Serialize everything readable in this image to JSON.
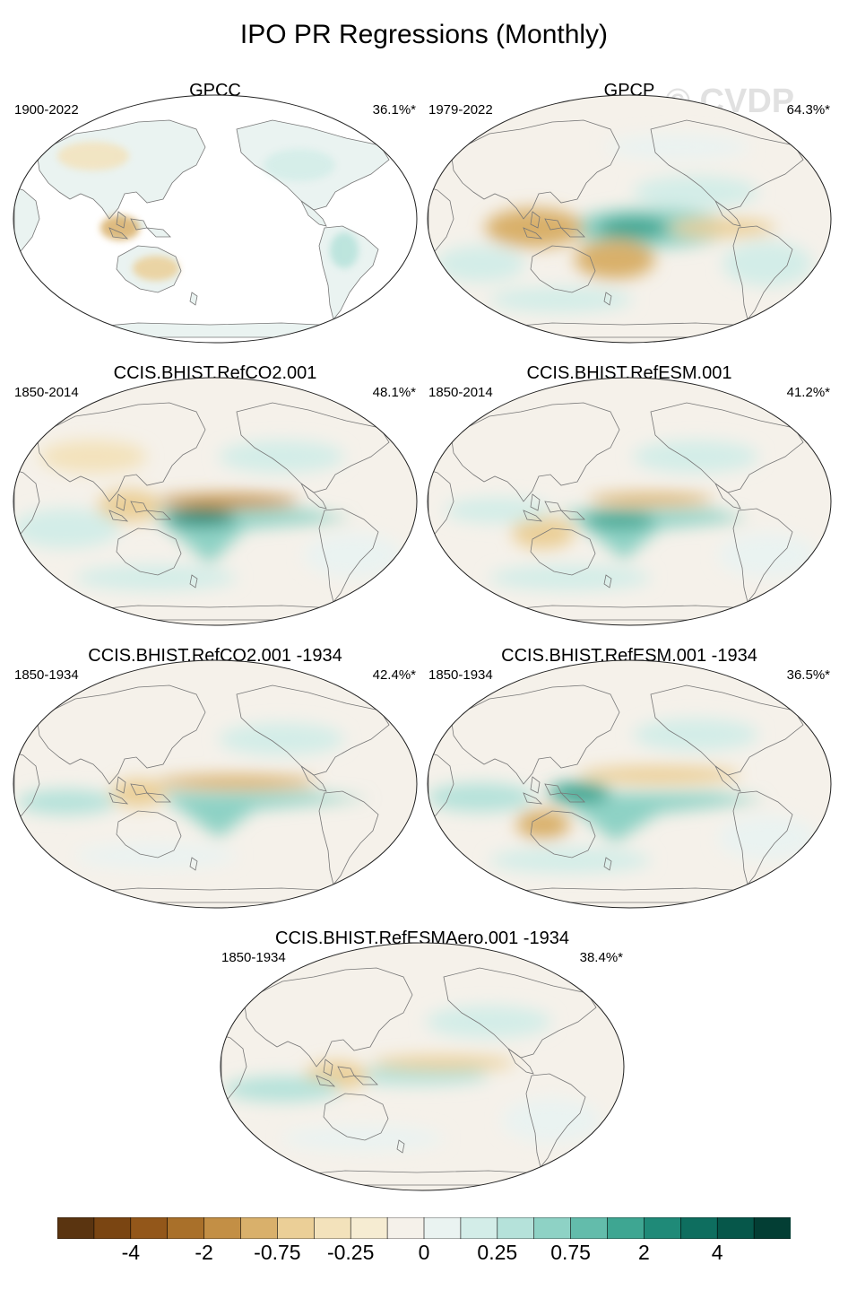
{
  "title": "IPO PR Regressions (Monthly)",
  "watermark": "© CVDP",
  "panels": [
    {
      "title": "GPCC",
      "years": "1900-2022",
      "pct": "36.1%*",
      "ocean_masked": true
    },
    {
      "title": "GPCP",
      "years": "1979-2022",
      "pct": "64.3%*",
      "ocean_masked": false
    },
    {
      "title": "CCIS.BHIST.RefCO2.001",
      "years": "1850-2014",
      "pct": "48.1%*",
      "ocean_masked": false
    },
    {
      "title": "CCIS.BHIST.RefESM.001",
      "years": "1850-2014",
      "pct": "41.2%*",
      "ocean_masked": false
    },
    {
      "title": "CCIS.BHIST.RefCO2.001 -1934",
      "years": "1850-1934",
      "pct": "42.4%*",
      "ocean_masked": false
    },
    {
      "title": "CCIS.BHIST.RefESM.001 -1934",
      "years": "1850-1934",
      "pct": "36.5%*",
      "ocean_masked": false
    },
    {
      "title": "CCIS.BHIST.RefESMAero.001 -1934",
      "years": "1850-1934",
      "pct": "38.4%*",
      "ocean_masked": false
    }
  ],
  "colorbar": {
    "colors": [
      "#5a3410",
      "#7a4512",
      "#93571a",
      "#a9702a",
      "#c38f45",
      "#d9b06b",
      "#ebcf97",
      "#f3e2bb",
      "#f6ecd2",
      "#f5f1ea",
      "#eaf3f1",
      "#d3ede8",
      "#b5e2da",
      "#8ed2c5",
      "#63bcab",
      "#3ea692",
      "#1f8a78",
      "#0e6e5f",
      "#06574a",
      "#033e34"
    ],
    "labels": [
      {
        "text": "-4",
        "boundary": 2
      },
      {
        "text": "-2",
        "boundary": 4
      },
      {
        "text": "-0.75",
        "boundary": 6
      },
      {
        "text": "-0.25",
        "boundary": 8
      },
      {
        "text": "0",
        "boundary": 10
      },
      {
        "text": "0.25",
        "boundary": 12
      },
      {
        "text": "0.75",
        "boundary": 14
      },
      {
        "text": "2",
        "boundary": 16
      },
      {
        "text": "4",
        "boundary": 18
      }
    ]
  }
}
